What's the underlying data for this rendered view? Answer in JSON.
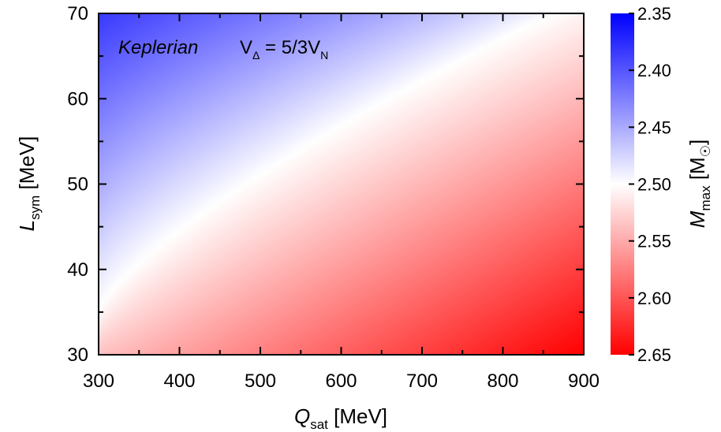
{
  "chart_data": {
    "type": "heatmap",
    "annotation": {
      "model": "Keplerian",
      "formula": {
        "lhs": "V",
        "lhs_sub": "Δ",
        "mid": " = 5/3V",
        "rhs_sub": "N"
      }
    },
    "x_axis": {
      "label": "Q",
      "label_sub": "sat",
      "unit": " [MeV]",
      "range": [
        300,
        900
      ],
      "ticks": [
        300,
        400,
        500,
        600,
        700,
        800,
        900
      ],
      "tick_labels": [
        "300",
        "400",
        "500",
        "600",
        "700",
        "800",
        "900"
      ]
    },
    "y_axis": {
      "label": "L",
      "label_sub": "sym",
      "unit": " [MeV]",
      "range": [
        30,
        70
      ],
      "ticks": [
        30,
        40,
        50,
        60,
        70
      ],
      "tick_labels": [
        "30",
        "40",
        "50",
        "60",
        "70"
      ]
    },
    "colorbar": {
      "label": "M",
      "label_sub": "max",
      "unit_prefix": " [M",
      "unit_symbol": "☉",
      "unit_suffix": "]",
      "range_top": 2.35,
      "range_bottom": 2.65,
      "ticks": [
        2.35,
        2.4,
        2.45,
        2.5,
        2.55,
        2.6,
        2.65
      ],
      "tick_labels": [
        "2.35",
        "2.40",
        "2.45",
        "2.50",
        "2.55",
        "2.60",
        "2.65"
      ],
      "colors": {
        "low": "#0000ff",
        "mid": "#ffffff",
        "high": "#ff0000"
      }
    },
    "field_samples": [
      {
        "Q": 300,
        "L": 70,
        "M": 2.35
      },
      {
        "Q": 300,
        "L": 35,
        "M": 2.5
      },
      {
        "Q": 300,
        "L": 30,
        "M": 2.52
      },
      {
        "Q": 500,
        "L": 50,
        "M": 2.49
      },
      {
        "Q": 800,
        "L": 68,
        "M": 2.5
      },
      {
        "Q": 900,
        "L": 70,
        "M": 2.51
      },
      {
        "Q": 900,
        "L": 30,
        "M": 2.65
      }
    ]
  }
}
